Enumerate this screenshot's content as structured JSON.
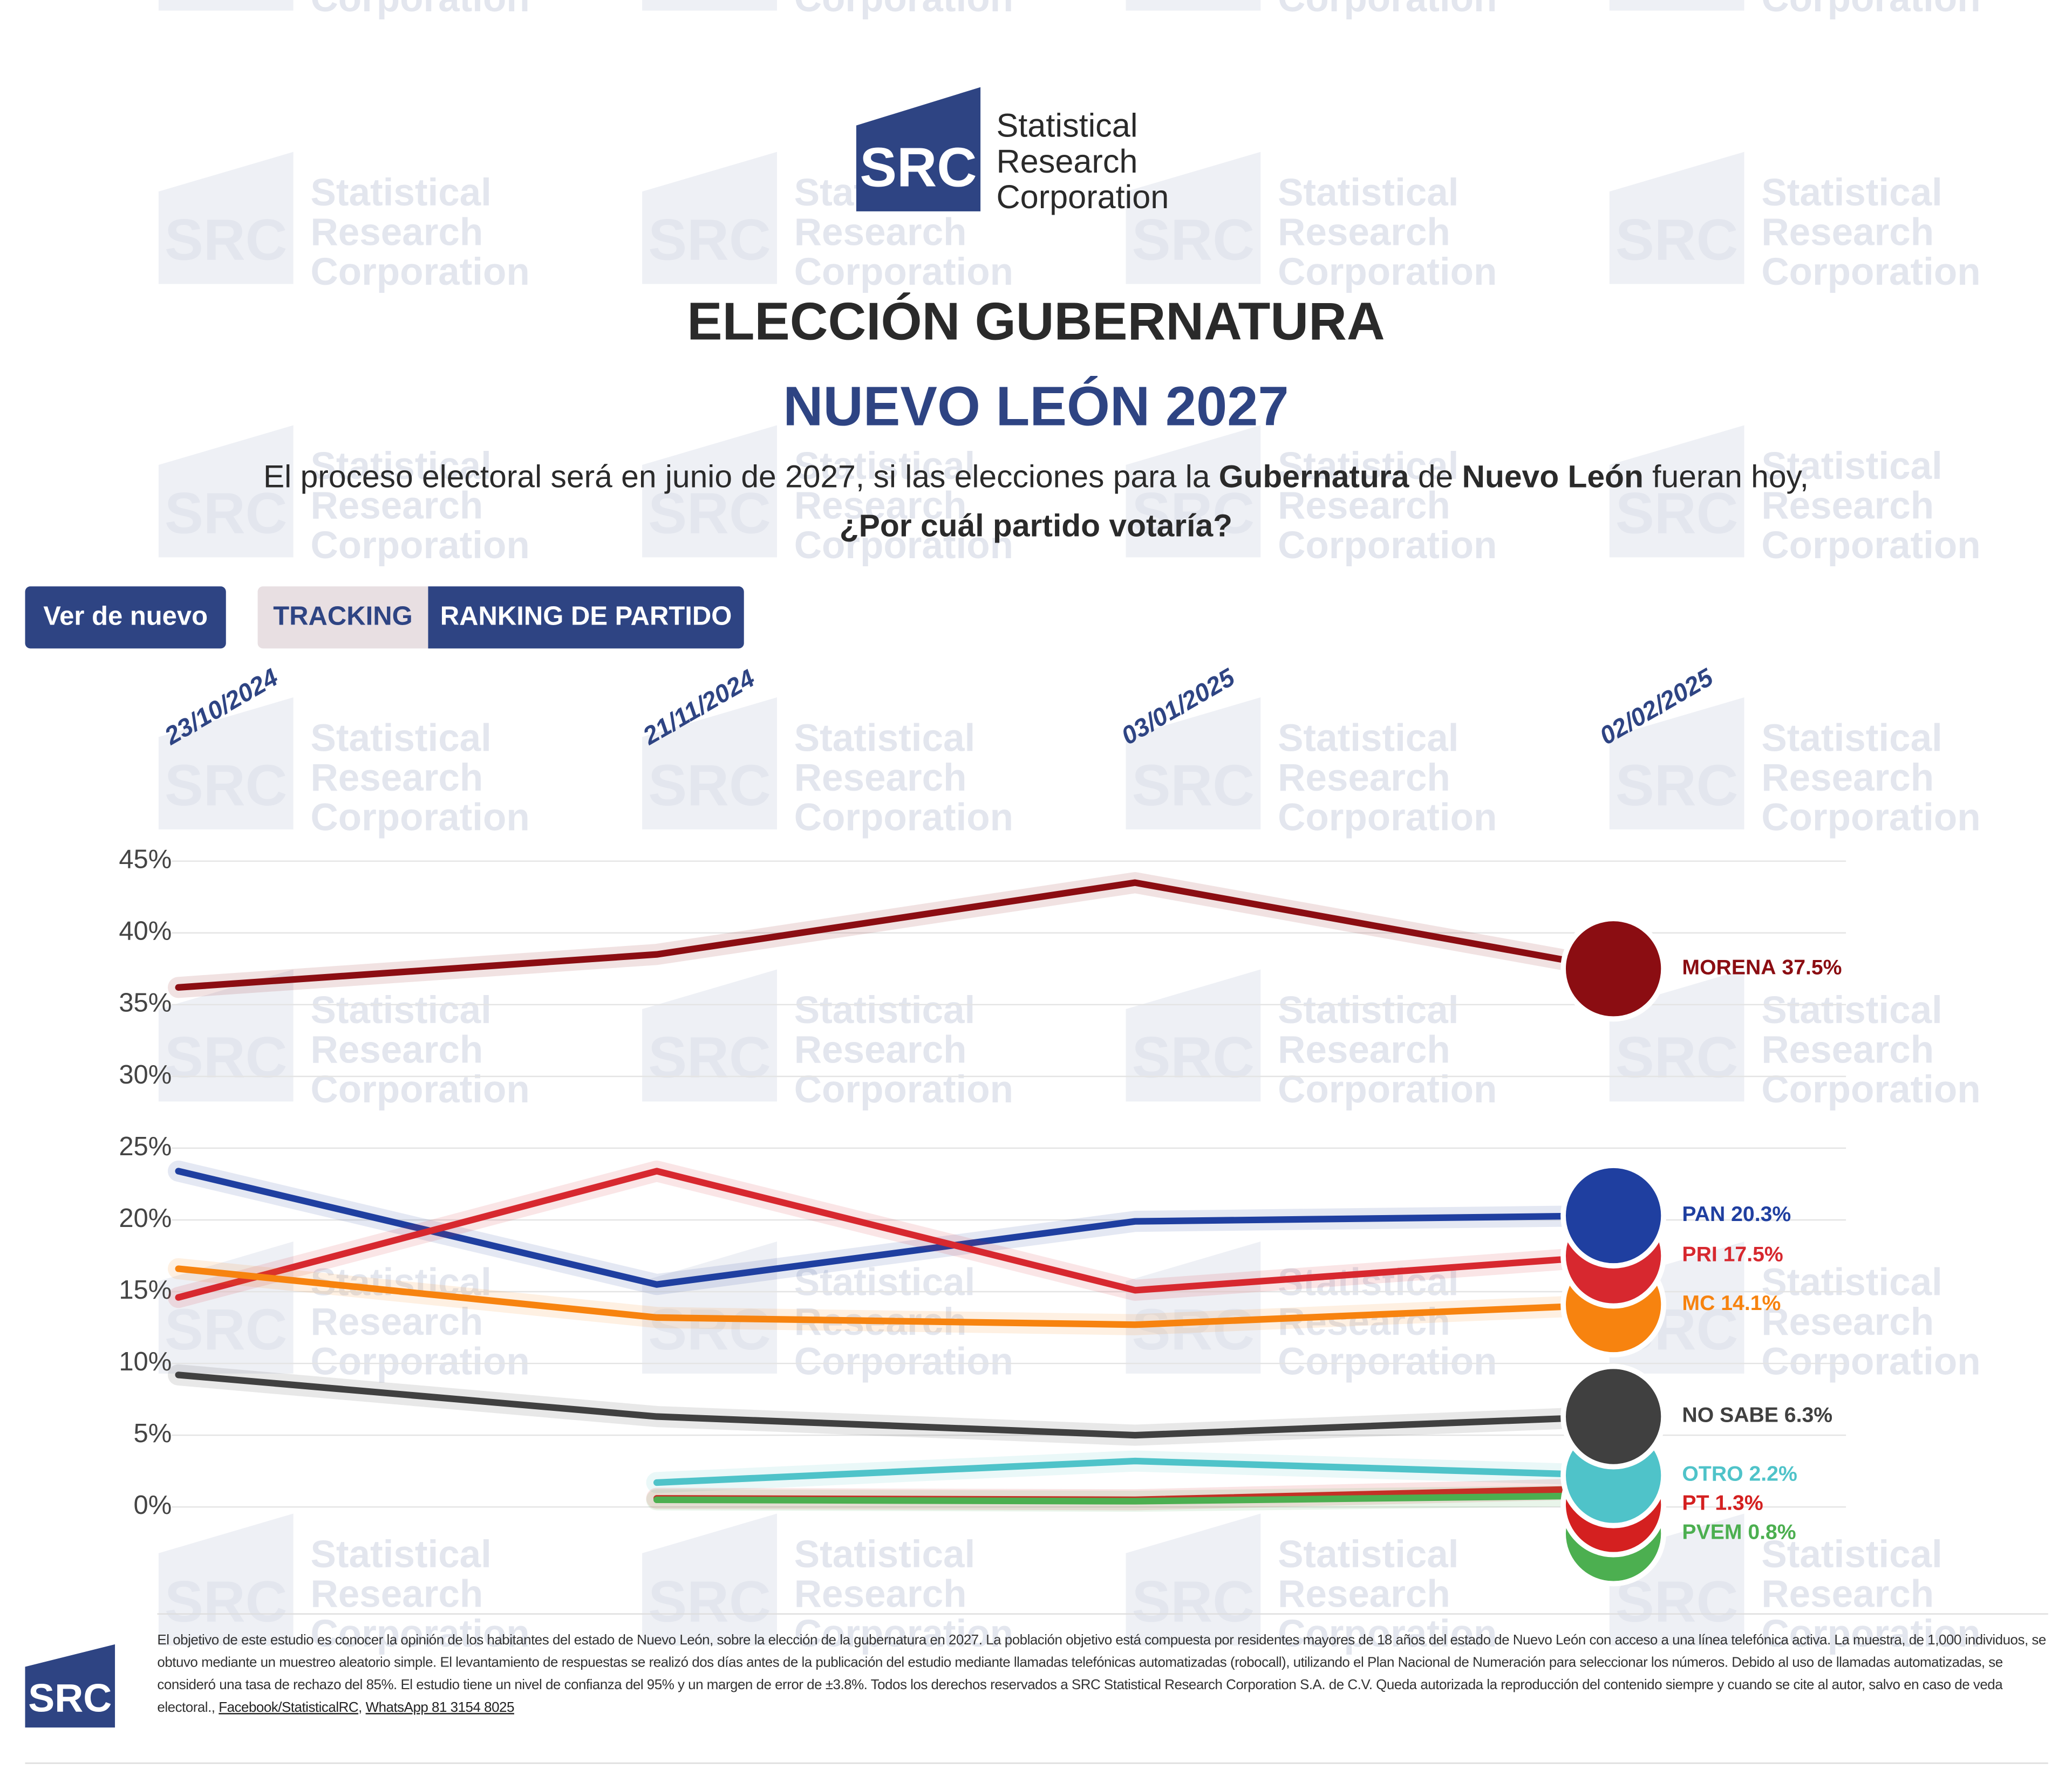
{
  "watermark": {
    "logo": "SRC",
    "lines": [
      "Statistical",
      "Research",
      "Corporation"
    ]
  },
  "header": {
    "logo": {
      "mark": "SRC",
      "lines": [
        "Statistical",
        "Research",
        "Corporation"
      ]
    },
    "title": "ELECCIÓN GUBERNATURA",
    "subtitle": "NUEVO LEÓN 2027",
    "question": {
      "parts": [
        "El proceso electoral será en junio de 2027, si las elecciones para la ",
        "Gubernatura",
        " de ",
        "Nuevo León",
        " fueran hoy,"
      ],
      "line2": "¿Por cuál partido votaría?"
    }
  },
  "buttons": [
    "Ver de nuevo",
    "TRACKING",
    "RANKING DE PARTIDO"
  ],
  "chart_data": {
    "type": "line",
    "x": [
      "23/10/2024",
      "21/11/2024",
      "03/01/2025",
      "02/02/2025"
    ],
    "ylim": [
      0,
      45
    ],
    "yticks": [
      {
        "value": 0,
        "label": "0%"
      },
      {
        "value": 5,
        "label": "5%"
      },
      {
        "value": 10,
        "label": "10%"
      },
      {
        "value": 15,
        "label": "15%"
      },
      {
        "value": 20,
        "label": "20%"
      },
      {
        "value": 25,
        "label": "25%"
      },
      {
        "value": 30,
        "label": "30%"
      },
      {
        "value": 35,
        "label": "35%"
      },
      {
        "value": 40,
        "label": "40%"
      },
      {
        "value": 45,
        "label": "45%"
      }
    ],
    "grid": true,
    "series": [
      {
        "name": "MORENA",
        "color": "#8b0d12",
        "values": [
          36.2,
          38.5,
          43.5,
          37.5
        ],
        "value_labels": [
          null,
          null,
          null,
          "37.5%"
        ]
      },
      {
        "name": "PAN",
        "color": "#1f3fa0",
        "values": [
          23.4,
          15.5,
          19.9,
          20.3
        ],
        "value_labels": [
          null,
          null,
          null,
          "20.3%"
        ]
      },
      {
        "name": "PRI",
        "color": "#d7282f",
        "values": [
          14.6,
          23.4,
          15.1,
          17.5
        ],
        "value_labels": [
          null,
          null,
          null,
          "17.5%"
        ]
      },
      {
        "name": "MC",
        "color": "#f7830f",
        "values": [
          16.6,
          13.2,
          12.7,
          14.1
        ],
        "value_labels": [
          null,
          null,
          null,
          "14.1%"
        ]
      },
      {
        "name": "NO SABE",
        "color": "#404040",
        "values": [
          9.2,
          6.3,
          5.0,
          6.3
        ],
        "value_labels": [
          null,
          null,
          null,
          "6.3%"
        ]
      },
      {
        "name": "OTRO",
        "color": "#4fc3c9",
        "values": [
          null,
          1.7,
          3.2,
          2.2
        ],
        "value_labels": [
          null,
          null,
          null,
          "2.2%"
        ]
      },
      {
        "name": "PT",
        "color": "#d42020",
        "values": [
          null,
          0.6,
          0.5,
          1.3
        ],
        "value_labels": [
          null,
          null,
          null,
          "1.3%"
        ]
      },
      {
        "name": "PVEM",
        "color": "#4caf50",
        "values": [
          null,
          0.5,
          0.4,
          0.8
        ],
        "value_labels": [
          null,
          null,
          null,
          "0.8%"
        ]
      }
    ]
  },
  "footer": {
    "logo": "SRC",
    "text": "El objetivo de este estudio es conocer la opinión de los habitantes del estado de Nuevo León, sobre la elección de la gubernatura en 2027. La población objetivo está compuesta por residentes mayores de 18 años del estado de Nuevo León con acceso a una línea telefónica activa. La muestra, de 1,000 individuos, se obtuvo mediante un muestreo aleatorio simple. El levantamiento de respuestas se realizó dos días antes de la publicación del estudio mediante llamadas telefónicas automatizadas (robocall), utilizando el Plan Nacional de Numeración para seleccionar los números. Debido al uso de llamadas automatizadas, se consideró una tasa de rechazo del 85%. El estudio tiene un nivel de confianza del 95% y un margen de error de ±3.8%. Todos los derechos reservados a SRC Statistical Research Corporation S.A. de C.V. Queda autorizada la reproducción del contenido siempre y cuando se cite al autor, salvo en caso de veda electoral.,",
    "links": [
      "Facebook/StatisticalRC",
      "WhatsApp 81 3154 8025"
    ]
  }
}
